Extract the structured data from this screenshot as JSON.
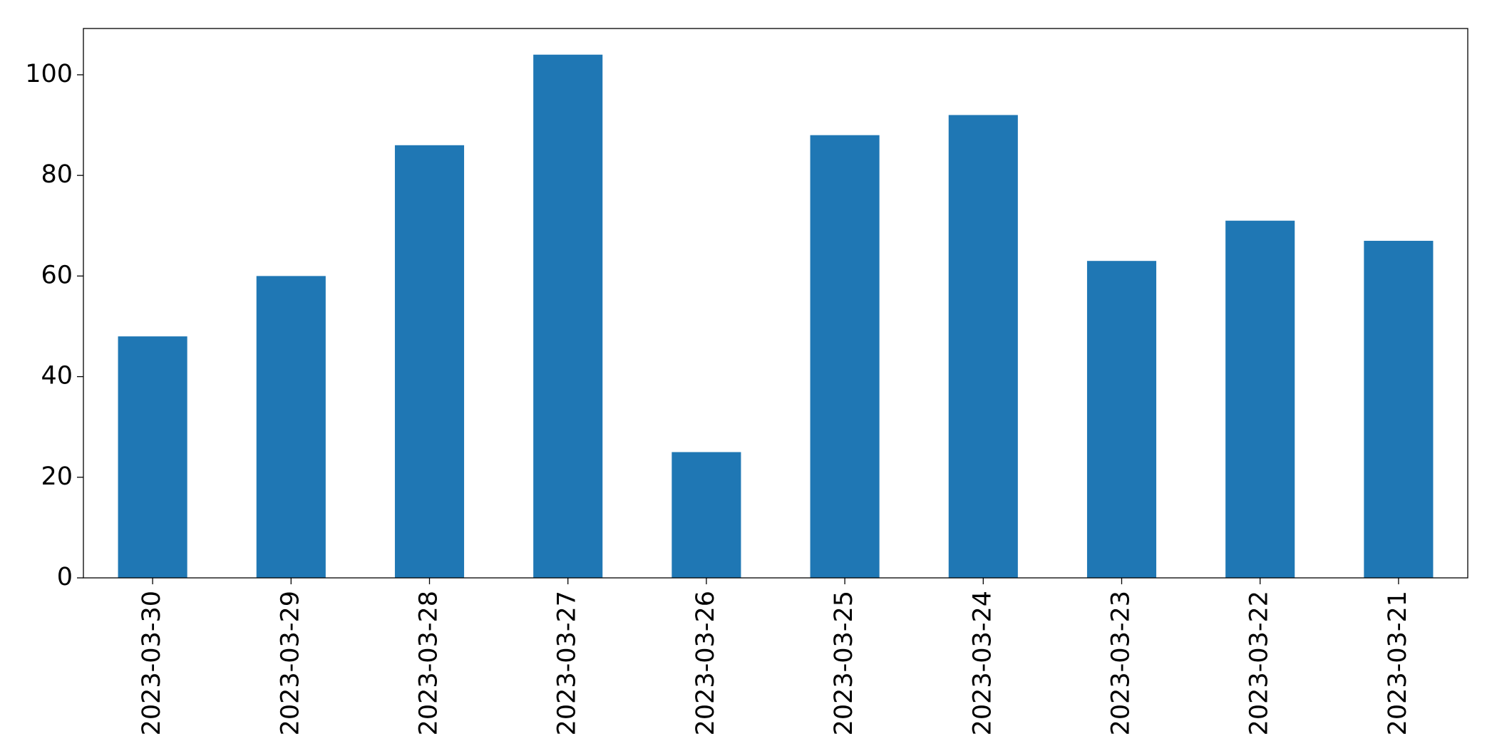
{
  "chart_data": {
    "type": "bar",
    "categories": [
      "2023-03-30",
      "2023-03-29",
      "2023-03-28",
      "2023-03-27",
      "2023-03-26",
      "2023-03-25",
      "2023-03-24",
      "2023-03-23",
      "2023-03-22",
      "2023-03-21"
    ],
    "values": [
      48,
      60,
      86,
      104,
      25,
      88,
      92,
      63,
      71,
      67
    ],
    "color": "#1f77b4",
    "ylim": [
      0,
      109.2
    ],
    "yticks": [
      0,
      20,
      40,
      60,
      80,
      100
    ],
    "grid": false
  }
}
